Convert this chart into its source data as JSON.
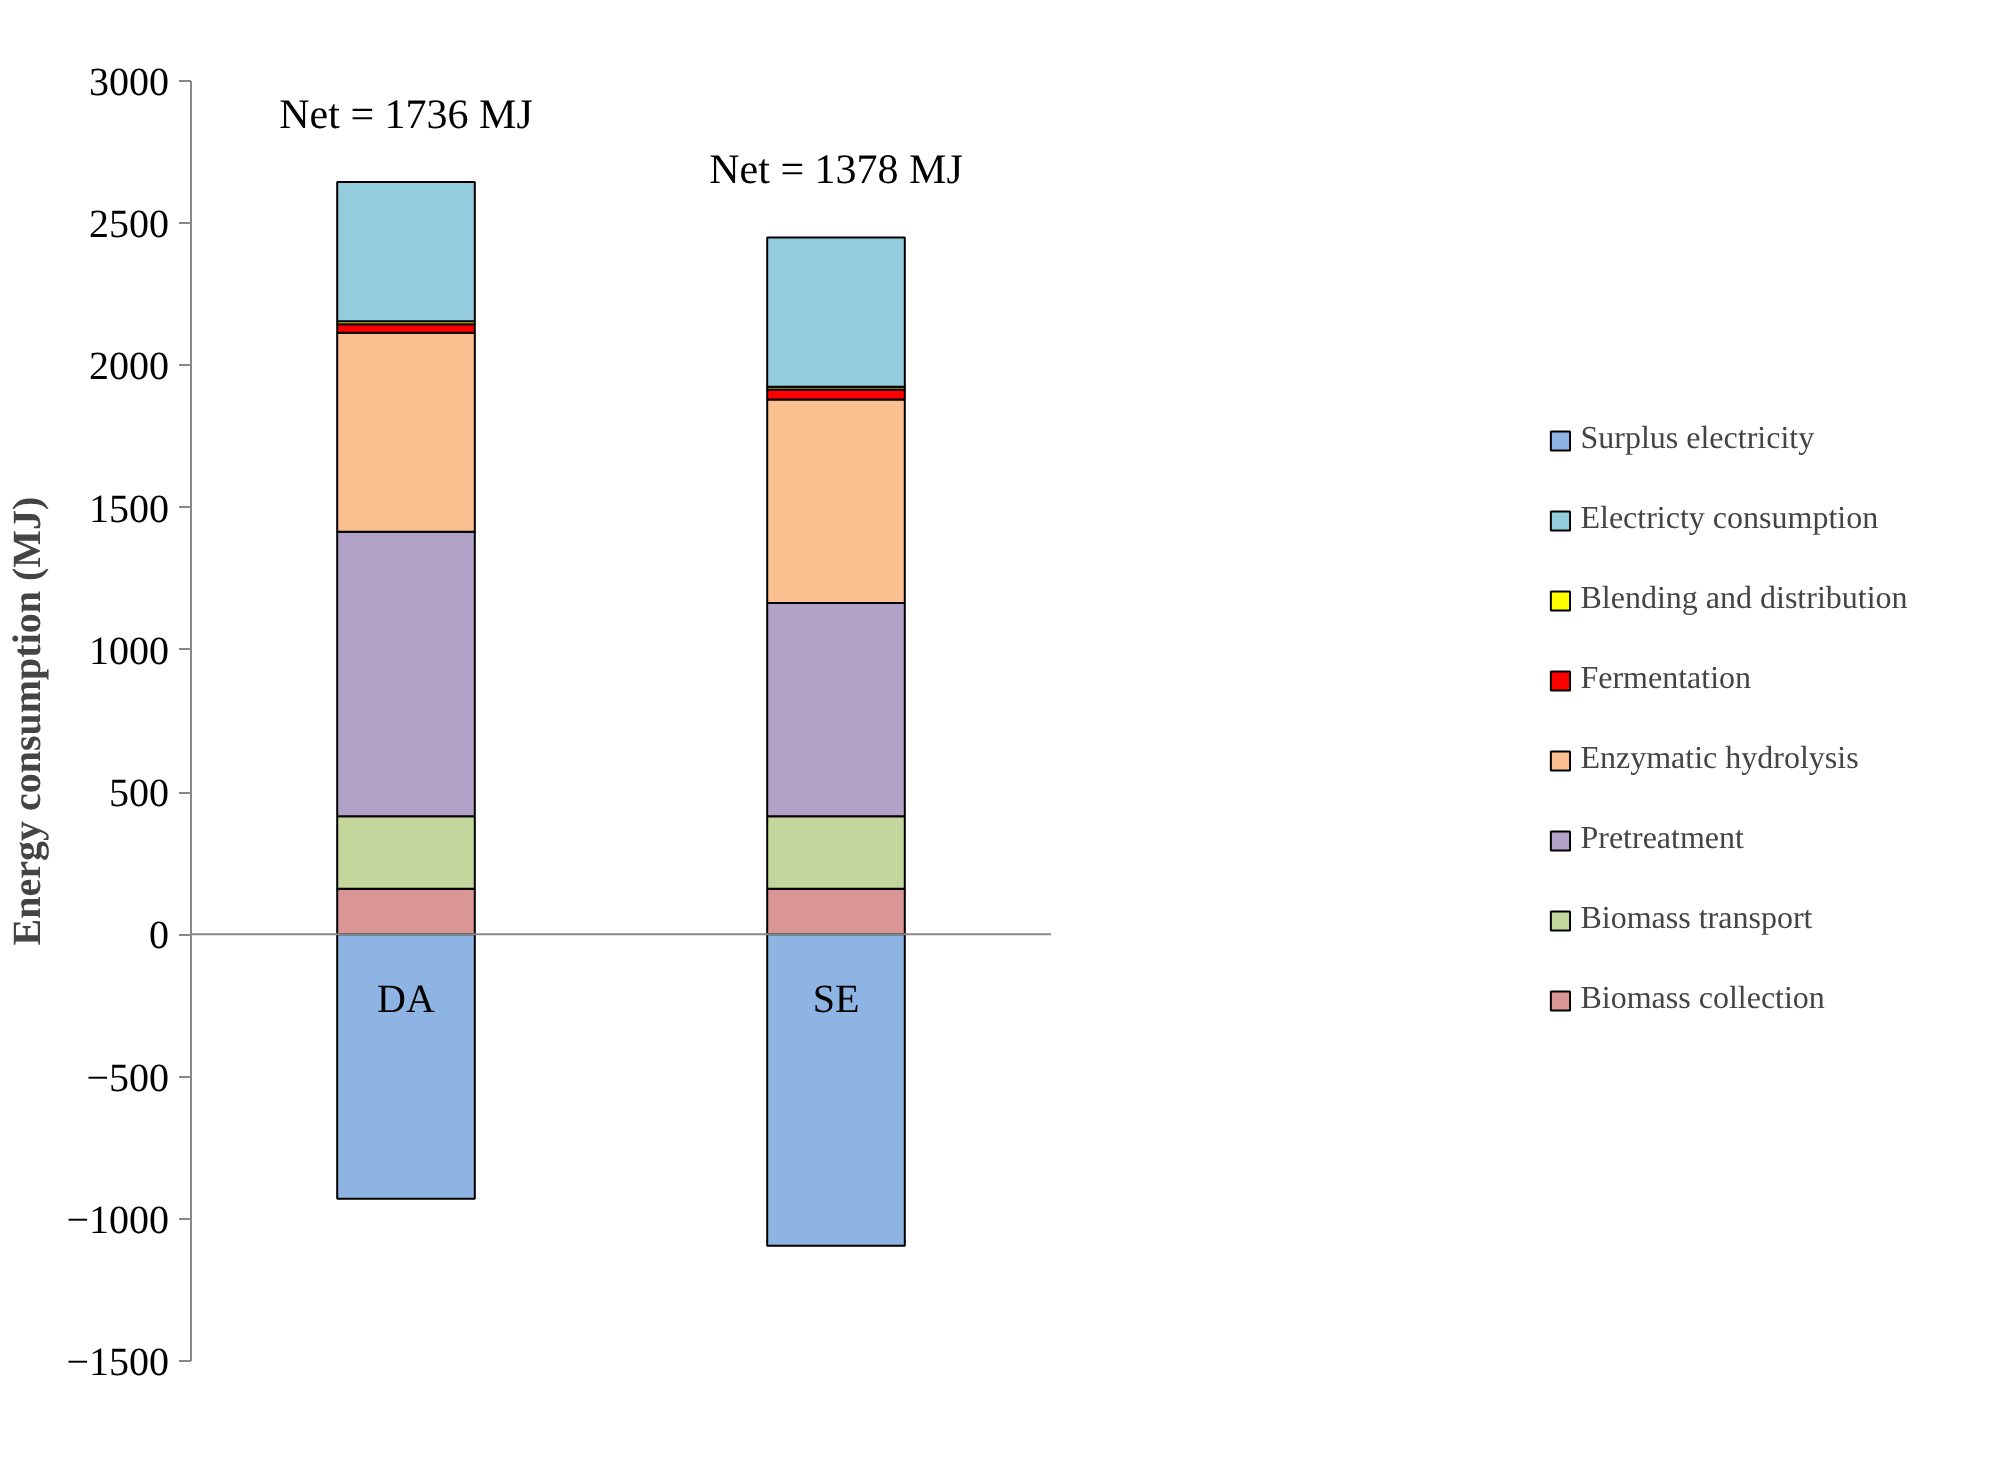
{
  "chart_data": {
    "type": "bar",
    "stacked": true,
    "ylabel": "Energy consumption (MJ)",
    "categories": [
      "DA",
      "SE"
    ],
    "series": [
      {
        "name": "Biomass collection",
        "color": "#d99694",
        "values": [
          160,
          160
        ]
      },
      {
        "name": "Biomass transport",
        "color": "#c3d69b",
        "values": [
          255,
          255
        ]
      },
      {
        "name": "Pretreatment",
        "color": "#b3a2c7",
        "values": [
          1000,
          750
        ]
      },
      {
        "name": "Enzymatic hydrolysis",
        "color": "#fac090",
        "values": [
          700,
          715
        ]
      },
      {
        "name": "Fermentation",
        "color": "#ff0000",
        "values": [
          30,
          35
        ]
      },
      {
        "name": "Blending and distribution",
        "color": "#ffff00",
        "values": [
          10,
          10
        ]
      },
      {
        "name": "Electricty consumption",
        "color": "#93cddd",
        "values": [
          490,
          525
        ]
      },
      {
        "name": "Surplus electricity",
        "color": "#8eb4e3",
        "values": [
          -930,
          -1095
        ]
      }
    ],
    "annotations": [
      "Net = 1736 MJ",
      "Net = 1378 MJ"
    ],
    "ylim": [
      -1500,
      3000
    ],
    "yticks": [
      -1500,
      -1000,
      -500,
      0,
      500,
      1000,
      1500,
      2000,
      2500,
      3000
    ],
    "grid": false,
    "legend": "right"
  }
}
